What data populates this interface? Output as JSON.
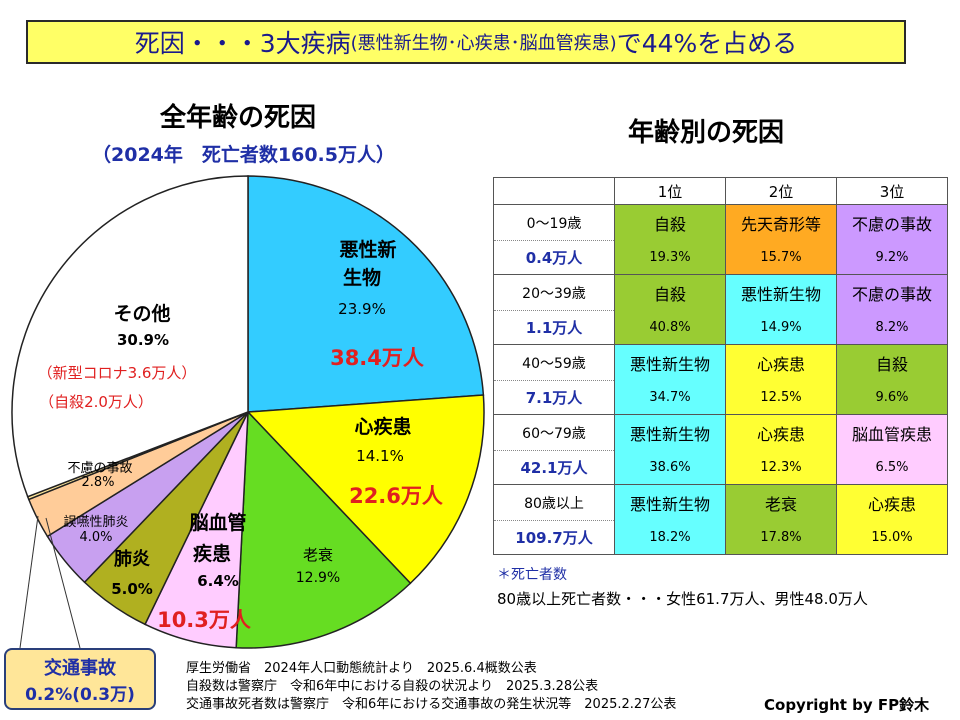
{
  "title": {
    "main": "死因・・・3大疾病",
    "paren": "(悪性新生物･心疾患･脳血管疾患)",
    "tail": "で44%を占める"
  },
  "pie": {
    "title": "全年齢の死因",
    "subtitle": "（2024年　死亡者数160.5万人）",
    "labels": {
      "cancer": {
        "name1": "悪性新",
        "name2": "生物",
        "pct": "23.9%",
        "deaths": "38.4万人"
      },
      "heart": {
        "name": "心疾患",
        "pct": "14.1%",
        "deaths": "22.6万人"
      },
      "senility": {
        "name": "老衰",
        "pct": "12.9%"
      },
      "cerebro": {
        "name1": "脳血管",
        "name2": "疾患",
        "pct": "6.4%",
        "deaths": "10.3万人"
      },
      "pneumonia": {
        "name": "肺炎",
        "pct": "5.0%"
      },
      "aspiration": {
        "name": "誤嚥性肺炎",
        "pct": "4.0%"
      },
      "accident": {
        "name": "不慮の事故",
        "pct": "2.8%"
      },
      "other": {
        "name": "その他",
        "pct": "30.9%",
        "note1": "（新型コロナ3.6万人）",
        "note2": "（自殺2.0万人）"
      }
    },
    "traffic_box": {
      "line1": "交通事故",
      "line2": "0.2%(0.3万)"
    }
  },
  "chart_data": [
    {
      "type": "pie",
      "title": "全年齢の死因",
      "subtitle": "（2024年　死亡者数160.5万人）",
      "slices": [
        {
          "label": "悪性新生物",
          "value": 23.9,
          "deaths": "38.4万人",
          "color": "#33ccff"
        },
        {
          "label": "心疾患",
          "value": 14.1,
          "deaths": "22.6万人",
          "color": "#ffff00"
        },
        {
          "label": "老衰",
          "value": 12.9,
          "color": "#66dd22"
        },
        {
          "label": "脳血管疾患",
          "value": 6.4,
          "deaths": "10.3万人",
          "color": "#ffccff"
        },
        {
          "label": "肺炎",
          "value": 5.0,
          "color": "#b0b020"
        },
        {
          "label": "誤嚥性肺炎",
          "value": 4.0,
          "color": "#c8a0f0"
        },
        {
          "label": "不慮の事故",
          "value": 2.8,
          "color": "#ffcc99"
        },
        {
          "label": "交通事故",
          "value": 0.2,
          "color": "#ffe699"
        },
        {
          "label": "その他",
          "value": 30.9,
          "color": "#ffffff"
        }
      ]
    },
    {
      "type": "table",
      "title": "年齢別の死因",
      "columns": [
        "",
        "1位",
        "2位",
        "3位"
      ],
      "rows": [
        {
          "age": "0～19歳",
          "deaths": "0.4万人",
          "causes": [
            {
              "name": "自殺",
              "pct": "19.3%",
              "color": "#99cc33"
            },
            {
              "name": "先天奇形等",
              "pct": "15.7%",
              "color": "#ffaa22"
            },
            {
              "name": "不慮の事故",
              "pct": "9.2%",
              "color": "#cc99ff"
            }
          ]
        },
        {
          "age": "20～39歳",
          "deaths": "1.1万人",
          "causes": [
            {
              "name": "自殺",
              "pct": "40.8%",
              "color": "#99cc33"
            },
            {
              "name": "悪性新生物",
              "pct": "14.9%",
              "color": "#66ffff"
            },
            {
              "name": "不慮の事故",
              "pct": "8.2%",
              "color": "#cc99ff"
            }
          ]
        },
        {
          "age": "40～59歳",
          "deaths": "7.1万人",
          "causes": [
            {
              "name": "悪性新生物",
              "pct": "34.7%",
              "color": "#66ffff"
            },
            {
              "name": "心疾患",
              "pct": "12.5%",
              "color": "#ffff33"
            },
            {
              "name": "自殺",
              "pct": "9.6%",
              "color": "#99cc33"
            }
          ]
        },
        {
          "age": "60～79歳",
          "deaths": "42.1万人",
          "causes": [
            {
              "name": "悪性新生物",
              "pct": "38.6%",
              "color": "#66ffff"
            },
            {
              "name": "心疾患",
              "pct": "12.3%",
              "color": "#ffff33"
            },
            {
              "name": "脳血管疾患",
              "pct": "6.5%",
              "color": "#ffccff"
            }
          ]
        },
        {
          "age": "80歳以上",
          "deaths": "109.7万人",
          "causes": [
            {
              "name": "悪性新生物",
              "pct": "18.2%",
              "color": "#66ffff"
            },
            {
              "name": "老衰",
              "pct": "17.8%",
              "color": "#99cc33"
            },
            {
              "name": "心疾患",
              "pct": "15.0%",
              "color": "#ffff33"
            }
          ]
        }
      ]
    }
  ],
  "table": {
    "title": "年齢別の死因",
    "headers": [
      "1位",
      "2位",
      "3位"
    ],
    "footnote_star": "＊死亡者数",
    "footnote_80": "80歳以上死亡者数・・・女性61.7万人、男性48.0万人"
  },
  "sources": {
    "line1": "厚生労働省　2024年人口動態統計より　2025.6.4概数公表",
    "line2": "自殺数は警察庁　令和6年中における自殺の状況より　2025.3.28公表",
    "line3": "交通事故死者数は警察庁　令和6年における交通事故の発生状況等　2025.2.27公表"
  },
  "copyright": "Copyright by FP鈴木"
}
